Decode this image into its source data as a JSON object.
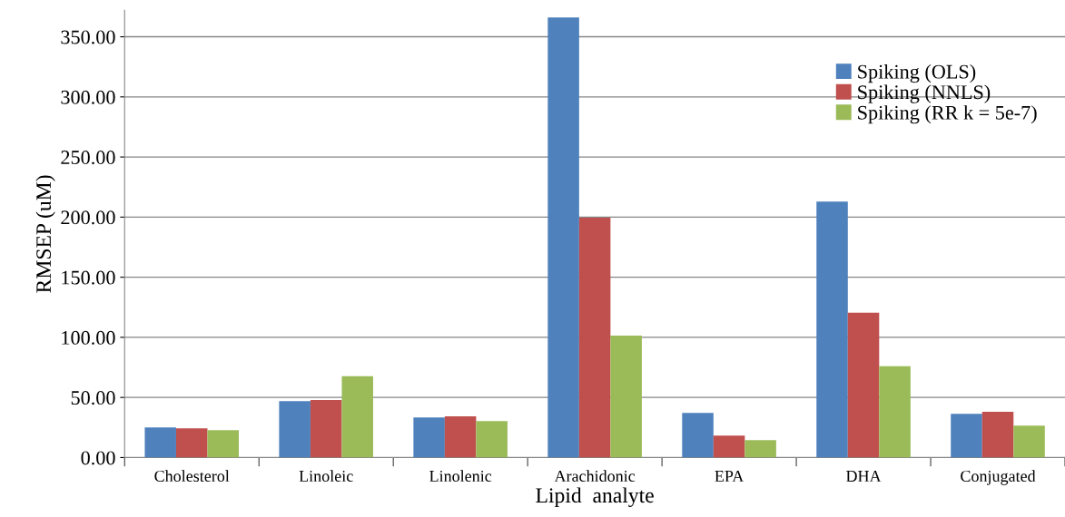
{
  "chart_data": {
    "type": "bar",
    "xlabel": "Lipid  analyte",
    "ylabel": "RMSEP (uM)",
    "categories": [
      "Cholesterol",
      "Linoleic",
      "Linolenic",
      "Arachidonic",
      "EPA",
      "DHA",
      "Conjugated"
    ],
    "series": [
      {
        "name": "Spiking (OLS)",
        "color": "#4f81bd",
        "values": [
          25,
          47,
          33.4,
          366,
          37.2,
          213,
          36.4
        ]
      },
      {
        "name": "Spiking (NNLS)",
        "color": "#c0504d",
        "values": [
          24.3,
          47.8,
          34.2,
          199.5,
          18.2,
          120.5,
          38
        ]
      },
      {
        "name": "Spiking (RR k = 5e-7)",
        "color": "#9bbb59",
        "values": [
          22.8,
          67.6,
          30.4,
          101.5,
          14.4,
          76,
          26.6
        ]
      }
    ],
    "ylim": [
      0,
      372
    ],
    "yticks": [
      {
        "value": 0,
        "label": "0.00"
      },
      {
        "value": 50,
        "label": "50.00"
      },
      {
        "value": 100,
        "label": "100.00"
      },
      {
        "value": 150,
        "label": "150.00"
      },
      {
        "value": 200,
        "label": "200.00"
      },
      {
        "value": 250,
        "label": "250.00"
      },
      {
        "value": 300,
        "label": "300.00"
      },
      {
        "value": 350,
        "label": "350.00"
      }
    ],
    "grid": "y",
    "legend": "top right"
  }
}
